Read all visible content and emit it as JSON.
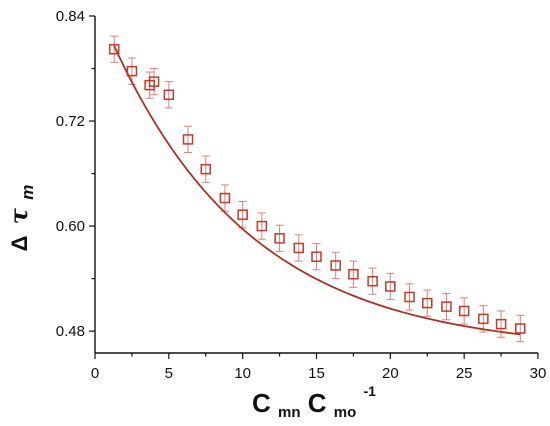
{
  "chart_data": {
    "type": "scatter",
    "xlabel": {
      "c1": "C",
      "s1": "mn",
      "c2": "C",
      "s2": "mo",
      "sup": "-1"
    },
    "ylabel": {
      "delta": "Δ",
      "tau": "τ",
      "sub": "m"
    },
    "xlim": [
      0,
      30
    ],
    "ylim": [
      0.455,
      0.84
    ],
    "x_ticks": [
      0,
      5,
      10,
      15,
      20,
      25,
      30
    ],
    "x_tick_labels": [
      "0",
      "5",
      "10",
      "15",
      "20",
      "25",
      "30"
    ],
    "y_major_ticks": [
      0.48,
      0.6,
      0.72,
      0.84
    ],
    "y_tick_labels": [
      "0.48",
      "0.60",
      "0.72",
      "0.84"
    ],
    "y_minor_ticks": [
      0.54,
      0.66,
      0.78
    ],
    "marker_color": "#c0392b",
    "errbar_color": "#d9827a",
    "fit_color": "#a93226",
    "points": [
      {
        "x": 1.3,
        "y": 0.802,
        "err": 0.015
      },
      {
        "x": 2.5,
        "y": 0.777,
        "err": 0.015
      },
      {
        "x": 3.7,
        "y": 0.761,
        "err": 0.015
      },
      {
        "x": 4.0,
        "y": 0.765,
        "err": 0.015
      },
      {
        "x": 5.0,
        "y": 0.75,
        "err": 0.015
      },
      {
        "x": 6.3,
        "y": 0.699,
        "err": 0.015
      },
      {
        "x": 7.5,
        "y": 0.665,
        "err": 0.015
      },
      {
        "x": 8.8,
        "y": 0.632,
        "err": 0.015
      },
      {
        "x": 10.0,
        "y": 0.613,
        "err": 0.015
      },
      {
        "x": 11.3,
        "y": 0.6,
        "err": 0.015
      },
      {
        "x": 12.5,
        "y": 0.586,
        "err": 0.015
      },
      {
        "x": 13.8,
        "y": 0.575,
        "err": 0.015
      },
      {
        "x": 15.0,
        "y": 0.565,
        "err": 0.015
      },
      {
        "x": 16.3,
        "y": 0.555,
        "err": 0.015
      },
      {
        "x": 17.5,
        "y": 0.545,
        "err": 0.015
      },
      {
        "x": 18.8,
        "y": 0.537,
        "err": 0.015
      },
      {
        "x": 20.0,
        "y": 0.531,
        "err": 0.015
      },
      {
        "x": 21.3,
        "y": 0.519,
        "err": 0.015
      },
      {
        "x": 22.5,
        "y": 0.512,
        "err": 0.015
      },
      {
        "x": 23.8,
        "y": 0.508,
        "err": 0.015
      },
      {
        "x": 25.0,
        "y": 0.503,
        "err": 0.015
      },
      {
        "x": 26.3,
        "y": 0.494,
        "err": 0.015
      },
      {
        "x": 27.5,
        "y": 0.488,
        "err": 0.015
      },
      {
        "x": 28.8,
        "y": 0.483,
        "err": 0.015
      }
    ],
    "fit": {
      "type": "exponential",
      "x_range": [
        1.3,
        28.8
      ],
      "y0": 0.457,
      "A": 0.4,
      "t": 9.5
    }
  }
}
